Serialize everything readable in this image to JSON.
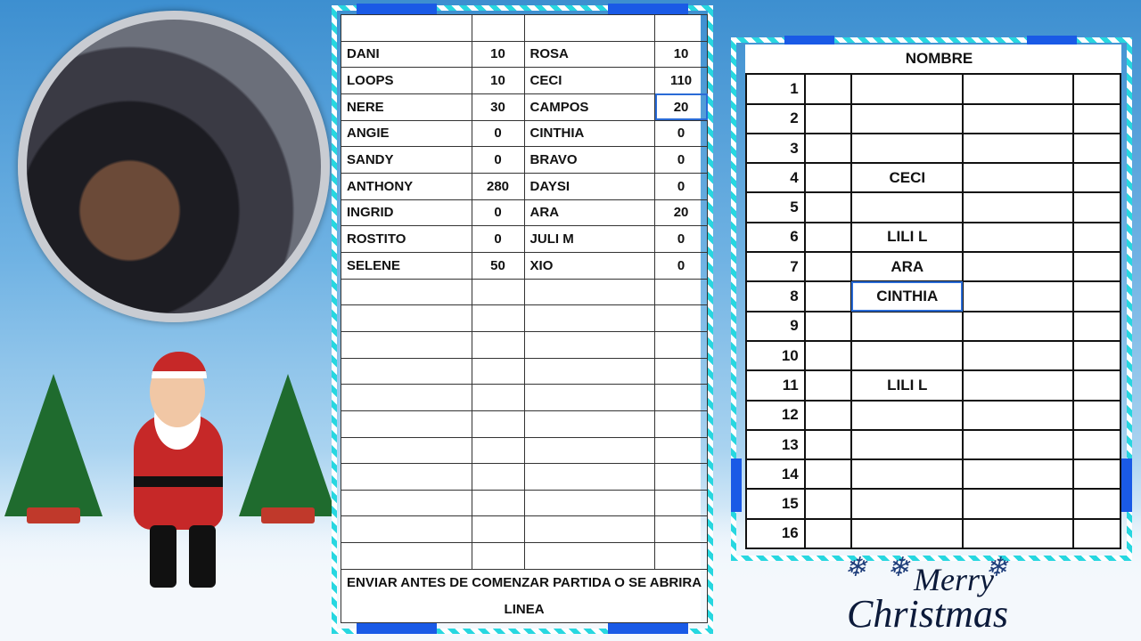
{
  "left_table": {
    "rows": [
      {
        "name1": "DANI",
        "val1": "10",
        "name2": "ROSA",
        "val2": "10"
      },
      {
        "name1": "LOOPS",
        "val1": "10",
        "name2": "CECI",
        "val2": "110"
      },
      {
        "name1": "NERE",
        "val1": "30",
        "name2": "CAMPOS",
        "val2": "20"
      },
      {
        "name1": "ANGIE",
        "val1": "0",
        "name2": "CINTHIA",
        "val2": "0"
      },
      {
        "name1": "SANDY",
        "val1": "0",
        "name2": "BRAVO",
        "val2": "0"
      },
      {
        "name1": "ANTHONY",
        "val1": "280",
        "name2": "DAYSI",
        "val2": "0"
      },
      {
        "name1": "INGRID",
        "val1": "0",
        "name2": "ARA",
        "val2": "20"
      },
      {
        "name1": "ROSTITO",
        "val1": "0",
        "name2": "JULI M",
        "val2": "0"
      },
      {
        "name1": "SELENE",
        "val1": "50",
        "name2": "XIO",
        "val2": "0"
      }
    ],
    "footer_line1": "ENVIAR ANTES DE COMENZAR PARTIDA O SE ABRIRA",
    "footer_line2": "LINEA"
  },
  "right_table": {
    "header": "NOMBRE",
    "rows": [
      {
        "n": "1",
        "name": ""
      },
      {
        "n": "2",
        "name": ""
      },
      {
        "n": "3",
        "name": ""
      },
      {
        "n": "4",
        "name": "CECI"
      },
      {
        "n": "5",
        "name": ""
      },
      {
        "n": "6",
        "name": "LILI L"
      },
      {
        "n": "7",
        "name": "ARA"
      },
      {
        "n": "8",
        "name": "CINTHIA"
      },
      {
        "n": "9",
        "name": ""
      },
      {
        "n": "10",
        "name": ""
      },
      {
        "n": "11",
        "name": "LILI L"
      },
      {
        "n": "12",
        "name": ""
      },
      {
        "n": "13",
        "name": ""
      },
      {
        "n": "14",
        "name": ""
      },
      {
        "n": "15",
        "name": ""
      },
      {
        "n": "16",
        "name": ""
      }
    ]
  },
  "logo": {
    "text1": "Merry",
    "text2": "Christmas"
  },
  "colors": {
    "frame_cyan": "#27d7e0",
    "frame_blue": "#1a5ae6",
    "selection": "#2a6bd6"
  }
}
